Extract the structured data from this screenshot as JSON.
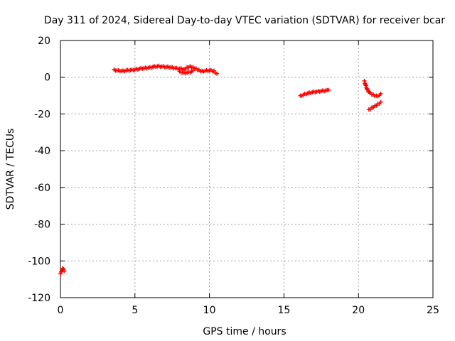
{
  "chart_data": {
    "type": "scatter",
    "title": "Day 311 of 2024, Sidereal Day-to-day VTEC variation (SDTVAR) for receiver bcar",
    "xlabel": "GPS time / hours",
    "ylabel": "SDTVAR / TECUs",
    "xlim": [
      0,
      25
    ],
    "ylim": [
      -120,
      20
    ],
    "xticks": [
      "0",
      "5",
      "10",
      "15",
      "20",
      "25"
    ],
    "yticks": [
      "-120",
      "-100",
      "-80",
      "-60",
      "-40",
      "-20",
      "0",
      "20"
    ],
    "grid": true,
    "marker": "plus",
    "colors": {
      "series": "#ff0000",
      "grid": "#a0a0a0",
      "axis": "#000000"
    },
    "series": [
      {
        "segments": [
          [
            [
              0.0,
              -107
            ],
            [
              0.05,
              -106
            ],
            [
              0.1,
              -105
            ],
            [
              0.15,
              -104
            ],
            [
              0.2,
              -104.5
            ],
            [
              0.25,
              -105.5
            ]
          ],
          [
            [
              3.6,
              4.2
            ],
            [
              3.9,
              3.8
            ],
            [
              4.2,
              3.6
            ],
            [
              4.5,
              4.0
            ],
            [
              4.8,
              4.2
            ],
            [
              5.1,
              4.5
            ],
            [
              5.4,
              5.0
            ],
            [
              5.7,
              5.2
            ],
            [
              6.0,
              5.5
            ],
            [
              6.3,
              6.0
            ],
            [
              6.6,
              6.2
            ],
            [
              6.9,
              6.0
            ],
            [
              7.2,
              5.8
            ],
            [
              7.5,
              5.5
            ],
            [
              7.8,
              5.0
            ],
            [
              8.1,
              4.8
            ],
            [
              8.3,
              4.5
            ],
            [
              8.5,
              5.5
            ],
            [
              8.7,
              6.0
            ],
            [
              8.9,
              5.5
            ],
            [
              9.1,
              4.8
            ],
            [
              9.3,
              4.0
            ],
            [
              9.5,
              3.5
            ],
            [
              9.8,
              3.8
            ],
            [
              10.1,
              4.0
            ],
            [
              10.3,
              3.5
            ],
            [
              10.5,
              2.0
            ]
          ],
          [
            [
              8.0,
              3.2
            ],
            [
              8.3,
              2.6
            ],
            [
              8.6,
              2.8
            ],
            [
              8.9,
              3.6
            ]
          ],
          [
            [
              16.1,
              -10
            ],
            [
              16.4,
              -9.0
            ],
            [
              16.7,
              -8.3
            ],
            [
              17.0,
              -7.8
            ],
            [
              17.3,
              -7.5
            ],
            [
              17.6,
              -7.2
            ],
            [
              17.9,
              -7.0
            ],
            [
              18.0,
              -7.0
            ]
          ],
          [
            [
              20.4,
              -2.0
            ],
            [
              20.5,
              -4.5
            ],
            [
              20.6,
              -6.8
            ],
            [
              20.8,
              -8.5
            ],
            [
              21.0,
              -9.5
            ],
            [
              21.2,
              -10.0
            ],
            [
              21.4,
              -9.8
            ],
            [
              21.5,
              -9.0
            ]
          ],
          [
            [
              20.7,
              -17.5
            ],
            [
              20.9,
              -16.5
            ],
            [
              21.1,
              -15.5
            ],
            [
              21.3,
              -14.5
            ],
            [
              21.5,
              -13.5
            ]
          ]
        ]
      }
    ]
  }
}
